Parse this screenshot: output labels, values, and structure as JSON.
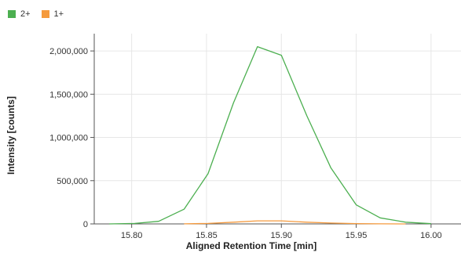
{
  "chart_data": {
    "type": "line",
    "title": "",
    "xlabel": "Aligned Retention Time [min]",
    "ylabel": "Intensity [counts]",
    "xlim": [
      15.775,
      16.02
    ],
    "ylim": [
      0,
      2200000
    ],
    "x_ticks": [
      15.8,
      15.85,
      15.9,
      15.95,
      16.0
    ],
    "x_tick_labels": [
      "15.80",
      "15.85",
      "15.90",
      "15.95",
      "16.00"
    ],
    "y_ticks": [
      0,
      500000,
      1000000,
      1500000,
      2000000
    ],
    "y_tick_labels": [
      "0",
      "500,000",
      "1,000,000",
      "1,500,000",
      "2,000,000"
    ],
    "grid": true,
    "legend_position": "top-left",
    "series": [
      {
        "name": "2+",
        "color": "#4caf50",
        "x": [
          15.785,
          15.802,
          15.818,
          15.835,
          15.851,
          15.868,
          15.884,
          15.9,
          15.917,
          15.933,
          15.95,
          15.966,
          15.983,
          16.0
        ],
        "y": [
          0,
          5000,
          30000,
          170000,
          580000,
          1400000,
          2050000,
          1950000,
          1250000,
          650000,
          220000,
          70000,
          20000,
          3000
        ]
      },
      {
        "name": "1+",
        "color": "#f59a3d",
        "x": [
          15.835,
          15.851,
          15.868,
          15.884,
          15.9,
          15.917,
          15.933,
          15.95,
          15.966,
          15.983
        ],
        "y": [
          1000,
          5000,
          20000,
          35000,
          35000,
          20000,
          10000,
          4000,
          1000,
          0
        ]
      }
    ]
  }
}
